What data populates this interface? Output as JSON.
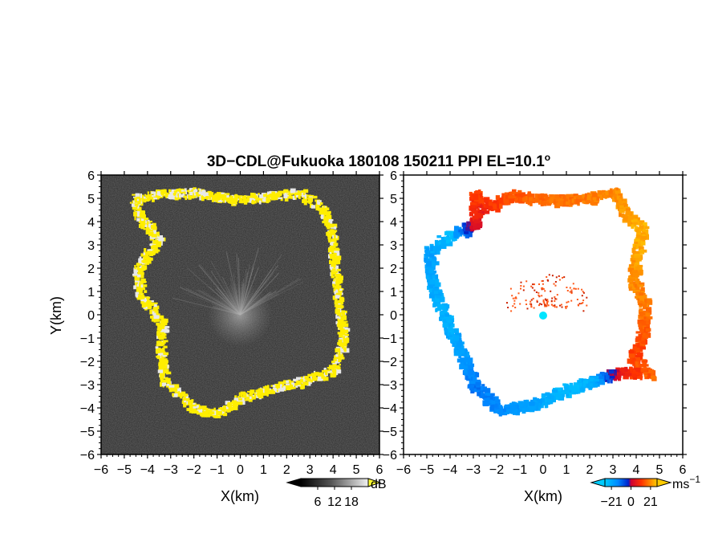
{
  "chart_data": [
    {
      "type": "heatmap",
      "panel": "reflectivity",
      "title_parts": {
        "prefix": "3D−CDL@Fukuoka 180108 150211 PPI EL=10.1",
        "degree": "o"
      },
      "xlabel": "X(km)",
      "ylabel": "Y(km)",
      "xlim": [
        -6,
        6
      ],
      "ylim": [
        -6,
        6
      ],
      "xticks": [
        "−6",
        "−5",
        "−4",
        "−3",
        "−2",
        "−1",
        "0",
        "1",
        "2",
        "3",
        "4",
        "5",
        "6"
      ],
      "yticks": [
        "6",
        "5",
        "4",
        "3",
        "2",
        "1",
        "0",
        "−1",
        "−2",
        "−3",
        "−4",
        "−5",
        "−6"
      ],
      "background_color": "#2a2a2a",
      "echo_color": "#ffee00",
      "colorbar": {
        "unit": "dB",
        "ticks": [
          "6",
          "12",
          "18"
        ],
        "range": [
          0,
          24
        ]
      },
      "echo_ring": [
        {
          "x": -4.6,
          "y": 5.0
        },
        {
          "x": -3.8,
          "y": 5.2
        },
        {
          "x": -2.0,
          "y": 5.3
        },
        {
          "x": -0.5,
          "y": 5.0
        },
        {
          "x": 1.0,
          "y": 5.1
        },
        {
          "x": 2.5,
          "y": 5.3
        },
        {
          "x": 3.5,
          "y": 4.6
        },
        {
          "x": 3.9,
          "y": 3.6
        },
        {
          "x": 4.0,
          "y": 2.0
        },
        {
          "x": 4.2,
          "y": 0.5
        },
        {
          "x": 4.4,
          "y": -1.0
        },
        {
          "x": 4.0,
          "y": -2.3
        },
        {
          "x": 3.0,
          "y": -2.7
        },
        {
          "x": 1.5,
          "y": -3.1
        },
        {
          "x": 0.0,
          "y": -3.5
        },
        {
          "x": -1.0,
          "y": -4.2
        },
        {
          "x": -2.0,
          "y": -4.0
        },
        {
          "x": -3.3,
          "y": -2.8
        },
        {
          "x": -3.5,
          "y": -1.5
        },
        {
          "x": -3.4,
          "y": -0.3
        },
        {
          "x": -4.4,
          "y": 1.0
        },
        {
          "x": -4.5,
          "y": 2.0
        },
        {
          "x": -3.6,
          "y": 3.3
        },
        {
          "x": -4.4,
          "y": 4.3
        }
      ]
    },
    {
      "type": "heatmap",
      "panel": "doppler-velocity",
      "xlabel": "X(km)",
      "xlim": [
        -6,
        6
      ],
      "ylim": [
        -6,
        6
      ],
      "xticks": [
        "−6",
        "−5",
        "−4",
        "−3",
        "−2",
        "−1",
        "0",
        "1",
        "2",
        "3",
        "4",
        "5",
        "6"
      ],
      "yticks": [
        "6",
        "5",
        "4",
        "3",
        "2",
        "1",
        "0",
        "−1",
        "−2",
        "−3",
        "−4",
        "−5",
        "−6"
      ],
      "background_color": "#ffffff",
      "colorbar": {
        "unit_base": "ms",
        "unit_exp": "−1",
        "ticks": [
          "−21",
          "0",
          "21"
        ],
        "range": [
          -28,
          28
        ]
      },
      "echo_ring": [
        {
          "x": -3.0,
          "y": 5.3,
          "v": 14
        },
        {
          "x": -2.5,
          "y": 4.6,
          "v": 10
        },
        {
          "x": -1.5,
          "y": 5.2,
          "v": 15
        },
        {
          "x": 0.0,
          "y": 5.0,
          "v": 18
        },
        {
          "x": 1.5,
          "y": 5.0,
          "v": 19
        },
        {
          "x": 3.0,
          "y": 5.3,
          "v": 21
        },
        {
          "x": 3.5,
          "y": 4.3,
          "v": 23
        },
        {
          "x": 4.2,
          "y": 3.8,
          "v": 25
        },
        {
          "x": 3.9,
          "y": 2.5,
          "v": 24
        },
        {
          "x": 3.8,
          "y": 1.5,
          "v": 21
        },
        {
          "x": 4.3,
          "y": 0.5,
          "v": 20
        },
        {
          "x": 4.2,
          "y": -0.8,
          "v": 16
        },
        {
          "x": 3.8,
          "y": -1.8,
          "v": 13
        },
        {
          "x": 4.5,
          "y": -2.5,
          "v": 17
        },
        {
          "x": 3.2,
          "y": -2.4,
          "v": 8
        },
        {
          "x": 2.0,
          "y": -2.8,
          "v": -22
        },
        {
          "x": 0.8,
          "y": -3.2,
          "v": -24
        },
        {
          "x": -0.5,
          "y": -3.8,
          "v": -20
        },
        {
          "x": -2.0,
          "y": -4.0,
          "v": -15
        },
        {
          "x": -3.0,
          "y": -3.0,
          "v": -12
        },
        {
          "x": -3.6,
          "y": -1.5,
          "v": -18
        },
        {
          "x": -4.2,
          "y": -0.3,
          "v": -22
        },
        {
          "x": -4.8,
          "y": 1.3,
          "v": -21
        },
        {
          "x": -5.0,
          "y": 2.8,
          "v": -19
        },
        {
          "x": -4.0,
          "y": 3.5,
          "v": -25
        },
        {
          "x": -3.0,
          "y": 3.9,
          "v": 4
        }
      ]
    }
  ]
}
